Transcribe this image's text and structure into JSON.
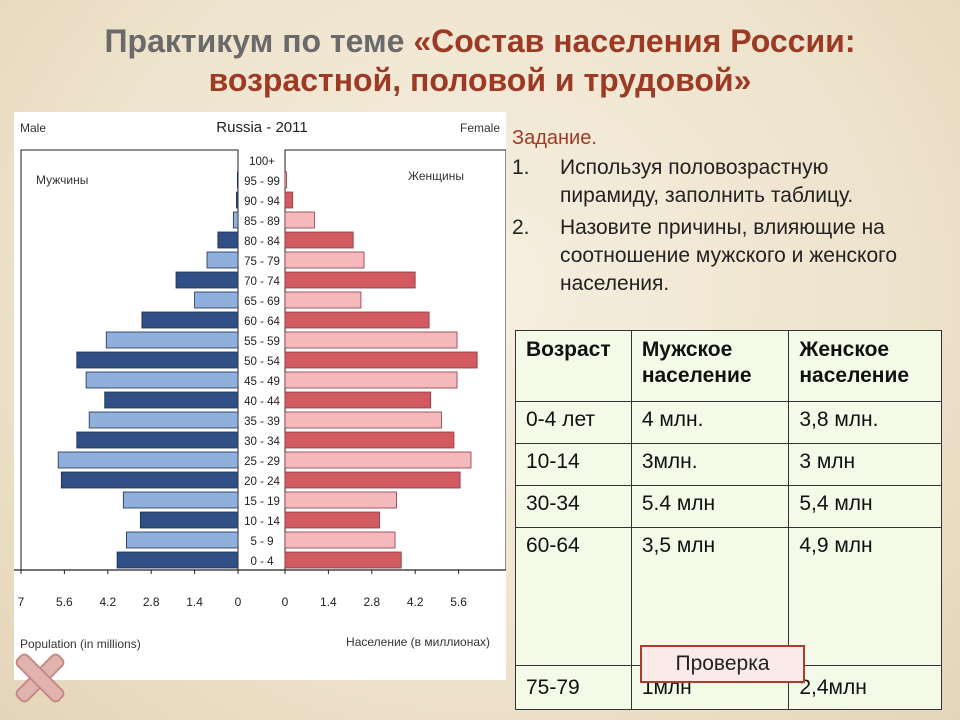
{
  "title": {
    "prefix": "Практикум по теме ",
    "topic": "«Состав населения России: возрастной, половой и трудовой»"
  },
  "task": {
    "heading": "Задание.",
    "items": [
      {
        "num": "1.",
        "text": "Используя половозрастную пирамиду, заполнить таблицу."
      },
      {
        "num": "2.",
        "text": "Назовите причины, влияющие на соотношение мужского и женского населения."
      }
    ]
  },
  "table": {
    "headers": [
      "Возраст",
      "Мужское население",
      "Женское население"
    ],
    "rows": [
      [
        "0-4 лет",
        "4 млн.",
        "3,8 млн."
      ],
      [
        "10-14",
        "3млн.",
        "3 млн"
      ],
      [
        "30-34",
        "5.4 млн",
        "5,4 млн"
      ],
      [
        "60-64",
        "3,5 млн",
        "4,9 млн"
      ],
      [
        "75-79",
        "1млн",
        "2,4млн"
      ]
    ]
  },
  "check_button": "Проверка",
  "colors": {
    "male_dark": "#2f4f86",
    "male_light": "#8fb0dc",
    "female_dark": "#d25a61",
    "female_light": "#f4b8bd",
    "accent": "#9c3b25",
    "table_bg": "#f3fbe8"
  },
  "chart_data": {
    "type": "bar",
    "title": "Russia - 2011",
    "left_label": "Male",
    "right_label": "Female",
    "male_series_label": "Мужчины",
    "female_series_label": "Женщины",
    "xlabel_left": "Population (in millions)",
    "xlabel_right": "Население (в миллионах)",
    "xlim": [
      0,
      7
    ],
    "male_ticks": [
      "7",
      "5.6",
      "4.2",
      "2.8",
      "1.4",
      "0"
    ],
    "female_ticks": [
      "0",
      "1.4",
      "2.8",
      "4.2",
      "5.6"
    ],
    "categories": [
      "100+",
      "95 - 99",
      "90 - 94",
      "85 - 89",
      "80 - 84",
      "75 - 79",
      "70 - 74",
      "65 - 69",
      "60 - 64",
      "55 - 59",
      "50 - 54",
      "45 - 49",
      "40 - 44",
      "35 - 39",
      "30 - 34",
      "25 - 29",
      "20 - 24",
      "15 - 19",
      "10 - 14",
      "5 - 9",
      "0 - 4"
    ],
    "series": [
      {
        "name": "Мужчины",
        "values": [
          0,
          0.02,
          0.05,
          0.15,
          0.65,
          1.0,
          2.0,
          1.4,
          3.1,
          4.25,
          5.2,
          4.9,
          4.3,
          4.8,
          5.2,
          5.8,
          5.7,
          3.7,
          3.15,
          3.6,
          3.9
        ]
      },
      {
        "name": "Женщины",
        "values": [
          0,
          0.05,
          0.25,
          0.95,
          2.2,
          2.55,
          4.2,
          2.45,
          4.65,
          5.55,
          6.2,
          5.55,
          4.7,
          5.05,
          5.45,
          6.0,
          5.65,
          3.6,
          3.05,
          3.55,
          3.75
        ]
      }
    ]
  }
}
